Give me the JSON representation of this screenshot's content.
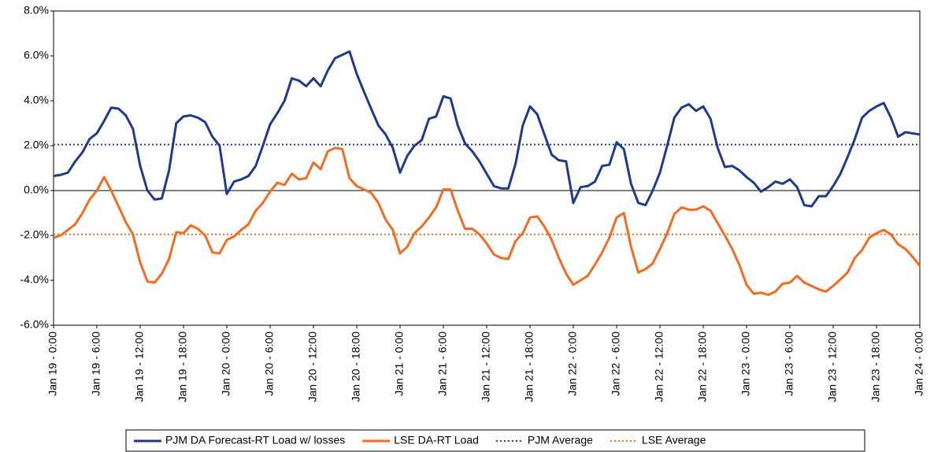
{
  "chart_data": {
    "type": "line",
    "categories": [
      "Jan 19 - 0:00",
      null,
      null,
      null,
      null,
      null,
      "Jan 19 - 6:00",
      null,
      null,
      null,
      null,
      null,
      "Jan 19 - 12:00",
      null,
      null,
      null,
      null,
      null,
      "Jan 19 - 18:00",
      null,
      null,
      null,
      null,
      null,
      "Jan 20 - 0:00",
      null,
      null,
      null,
      null,
      null,
      "Jan 20 - 6:00",
      null,
      null,
      null,
      null,
      null,
      "Jan 20 - 12:00",
      null,
      null,
      null,
      null,
      null,
      "Jan 20 - 18:00",
      null,
      null,
      null,
      null,
      null,
      "Jan 21 - 0:00",
      null,
      null,
      null,
      null,
      null,
      "Jan 21 - 6:00",
      null,
      null,
      null,
      null,
      null,
      "Jan 21 - 12:00",
      null,
      null,
      null,
      null,
      null,
      "Jan 21 - 18:00",
      null,
      null,
      null,
      null,
      null,
      "Jan 22 - 0:00",
      null,
      null,
      null,
      null,
      null,
      "Jan 22 - 6:00",
      null,
      null,
      null,
      null,
      null,
      "Jan 22 - 12:00",
      null,
      null,
      null,
      null,
      null,
      "Jan 22 - 18:00",
      null,
      null,
      null,
      null,
      null,
      "Jan 23 - 0:00",
      null,
      null,
      null,
      null,
      null,
      "Jan 23 - 6:00",
      null,
      null,
      null,
      null,
      null,
      "Jan 23 - 12:00",
      null,
      null,
      null,
      null,
      null,
      "Jan 23 - 18:00",
      null,
      null,
      null,
      null,
      null,
      "Jan 24 - 0:00"
    ],
    "series": [
      {
        "name": "PJM DA Forecast-RT Load w/ losses",
        "color": "#1f3a8c",
        "values": [
          0.65,
          0.7,
          0.8,
          1.3,
          1.7,
          2.3,
          2.55,
          3.1,
          3.7,
          3.65,
          3.35,
          2.75,
          1.1,
          0.0,
          -0.4,
          -0.35,
          0.9,
          3.0,
          3.3,
          3.35,
          3.25,
          3.05,
          2.4,
          2.0,
          -0.15,
          0.4,
          0.5,
          0.65,
          1.1,
          2.0,
          2.95,
          3.45,
          4.0,
          5.0,
          4.9,
          4.65,
          5.0,
          4.65,
          5.35,
          5.9,
          6.05,
          6.2,
          5.2,
          4.4,
          3.65,
          2.9,
          2.5,
          1.9,
          0.8,
          1.55,
          2.0,
          2.25,
          3.2,
          3.3,
          4.2,
          4.1,
          2.9,
          2.1,
          1.75,
          1.3,
          0.75,
          0.2,
          0.1,
          0.1,
          1.2,
          2.9,
          3.75,
          3.4,
          2.5,
          1.6,
          1.35,
          1.3,
          -0.55,
          0.15,
          0.2,
          0.4,
          1.1,
          1.15,
          2.15,
          1.85,
          0.3,
          -0.55,
          -0.65,
          0.0,
          0.8,
          2.0,
          3.25,
          3.7,
          3.85,
          3.55,
          3.75,
          3.2,
          1.9,
          1.05,
          1.1,
          0.9,
          0.6,
          0.35,
          -0.05,
          0.15,
          0.4,
          0.3,
          0.5,
          0.15,
          -0.65,
          -0.7,
          -0.25,
          -0.25,
          0.2,
          0.75,
          1.5,
          2.3,
          3.25,
          3.55,
          3.75,
          3.9,
          3.25,
          2.4,
          2.6,
          2.55,
          2.5
        ]
      },
      {
        "name": "LSE DA-RT Load",
        "color": "#f26b21",
        "values": [
          -2.1,
          -2.0,
          -1.75,
          -1.5,
          -1.0,
          -0.4,
          0.0,
          0.6,
          0.0,
          -0.7,
          -1.4,
          -1.95,
          -3.2,
          -4.05,
          -4.1,
          -3.7,
          -3.05,
          -1.85,
          -1.9,
          -1.55,
          -1.7,
          -2.0,
          -2.75,
          -2.8,
          -2.2,
          -2.05,
          -1.75,
          -1.5,
          -0.9,
          -0.55,
          -0.05,
          0.35,
          0.25,
          0.75,
          0.5,
          0.55,
          1.25,
          0.95,
          1.75,
          1.9,
          1.85,
          0.55,
          0.2,
          0.05,
          -0.1,
          -0.55,
          -1.3,
          -1.75,
          -2.8,
          -2.5,
          -1.9,
          -1.6,
          -1.2,
          -0.75,
          0.05,
          0.05,
          -0.9,
          -1.7,
          -1.7,
          -1.95,
          -2.35,
          -2.85,
          -3.0,
          -3.05,
          -2.25,
          -1.9,
          -1.2,
          -1.15,
          -1.6,
          -2.2,
          -3.0,
          -3.7,
          -4.2,
          -4.0,
          -3.8,
          -3.3,
          -2.75,
          -2.1,
          -1.2,
          -1.0,
          -2.5,
          -3.65,
          -3.5,
          -3.25,
          -2.6,
          -1.9,
          -1.05,
          -0.75,
          -0.85,
          -0.85,
          -0.7,
          -0.9,
          -1.45,
          -2.0,
          -2.6,
          -3.3,
          -4.2,
          -4.6,
          -4.55,
          -4.65,
          -4.5,
          -4.15,
          -4.1,
          -3.8,
          -4.1,
          -4.25,
          -4.4,
          -4.5,
          -4.25,
          -3.95,
          -3.65,
          -3.0,
          -2.65,
          -2.1,
          -1.9,
          -1.75,
          -1.95,
          -2.4,
          -2.6,
          -2.95,
          -3.35
        ]
      }
    ],
    "reference_lines": [
      {
        "name": "PJM Average",
        "color": "#1f3a8c",
        "value": 2.05,
        "style": "dotted"
      },
      {
        "name": "LSE Average",
        "color": "#f26b21",
        "value": -1.95,
        "style": "dotted"
      }
    ],
    "ylim": [
      -6,
      8
    ],
    "yticks": [
      {
        "value": -6,
        "label": "-6.0%"
      },
      {
        "value": -4,
        "label": "-4.0%"
      },
      {
        "value": -2,
        "label": "-2.0%"
      },
      {
        "value": 0,
        "label": "0.0%"
      },
      {
        "value": 2,
        "label": "2.0%"
      },
      {
        "value": 4,
        "label": "4.0%"
      },
      {
        "value": 6,
        "label": "6.0%"
      },
      {
        "value": 8,
        "label": "8.0%"
      }
    ],
    "legend": "bottom"
  }
}
